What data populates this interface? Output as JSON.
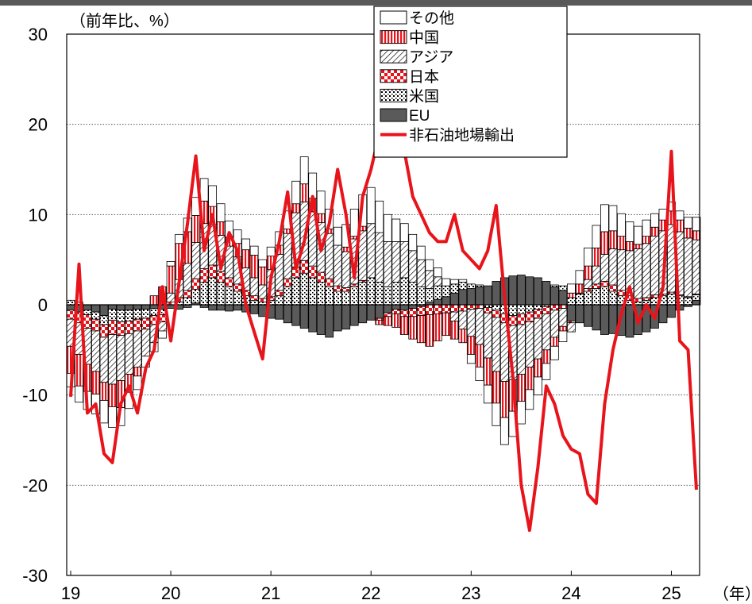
{
  "chart_data": {
    "type": "bar",
    "stacked": true,
    "unit_label": "（前年比、%）",
    "x_unit_label": "（年）",
    "ylim": [
      -30,
      30
    ],
    "yticks": [
      "30",
      "20",
      "10",
      "0",
      "-10",
      "-20",
      "-30"
    ],
    "xticks": [
      "19",
      "20",
      "21",
      "22",
      "23",
      "24",
      "25"
    ],
    "grid": true,
    "legend_position": "top-center",
    "months": [
      "2019-01",
      "2019-02",
      "2019-03",
      "2019-04",
      "2019-05",
      "2019-06",
      "2019-07",
      "2019-08",
      "2019-09",
      "2019-10",
      "2019-11",
      "2019-12",
      "2020-01",
      "2020-02",
      "2020-03",
      "2020-04",
      "2020-05",
      "2020-06",
      "2020-07",
      "2020-08",
      "2020-09",
      "2020-10",
      "2020-11",
      "2020-12",
      "2021-01",
      "2021-02",
      "2021-03",
      "2021-04",
      "2021-05",
      "2021-06",
      "2021-07",
      "2021-08",
      "2021-09",
      "2021-10",
      "2021-11",
      "2021-12",
      "2022-01",
      "2022-02",
      "2022-03",
      "2022-04",
      "2022-05",
      "2022-06",
      "2022-07",
      "2022-08",
      "2022-09",
      "2022-10",
      "2022-11",
      "2022-12",
      "2023-01",
      "2023-02",
      "2023-03",
      "2023-04",
      "2023-05",
      "2023-06",
      "2023-07",
      "2023-08",
      "2023-09",
      "2023-10",
      "2023-11",
      "2023-12",
      "2024-01",
      "2024-02",
      "2024-03",
      "2024-04",
      "2024-05",
      "2024-06",
      "2024-07",
      "2024-08",
      "2024-09",
      "2024-10",
      "2024-11",
      "2024-12",
      "2025-01",
      "2025-02",
      "2025-03",
      "2025-04"
    ],
    "series": [
      {
        "name": "EU",
        "kind": "bar",
        "pattern": "solid-gray",
        "values": [
          -0.6,
          -0.8,
          -0.6,
          -0.8,
          -1.2,
          -0.5,
          -0.6,
          -0.6,
          -0.5,
          -0.5,
          -0.4,
          -0.5,
          -0.4,
          -0.5,
          -0.3,
          0.2,
          -0.3,
          -0.6,
          -0.6,
          -0.7,
          -0.6,
          -0.8,
          -1.0,
          -1.3,
          -1.5,
          -1.6,
          -2.0,
          -2.3,
          -2.6,
          -3.0,
          -3.3,
          -3.6,
          -2.9,
          -2.7,
          -2.3,
          -2.0,
          -1.7,
          -1.5,
          -0.9,
          -0.5,
          -0.6,
          -0.4,
          -0.2,
          0.3,
          0.6,
          0.9,
          1.3,
          1.7,
          1.8,
          2.0,
          2.1,
          2.6,
          3.0,
          3.2,
          3.3,
          3.1,
          3.0,
          2.6,
          2.0,
          1.6,
          -1.8,
          -2.0,
          -2.4,
          -2.8,
          -3.3,
          -3.2,
          -3.4,
          -3.6,
          -3.3,
          -3.0,
          -2.6,
          -2.0,
          -1.4,
          -0.6,
          -0.2,
          0.5
        ]
      },
      {
        "name": "米国",
        "kind": "bar",
        "pattern": "speckled",
        "values": [
          0.5,
          0.3,
          -0.5,
          -0.8,
          -1.0,
          -1.2,
          -1.3,
          -1.2,
          -1.1,
          -1.0,
          -0.8,
          -0.6,
          0.0,
          0.3,
          0.8,
          1.5,
          2.5,
          3.0,
          2.5,
          2.0,
          1.5,
          1.0,
          0.5,
          0.3,
          0.5,
          1.0,
          2.0,
          3.0,
          3.5,
          3.0,
          2.5,
          2.0,
          1.5,
          1.5,
          2.0,
          2.5,
          3.0,
          2.5,
          2.0,
          2.5,
          3.0,
          2.5,
          2.0,
          1.5,
          1.5,
          1.2,
          1.0,
          0.8,
          0.5,
          0.2,
          -0.3,
          -0.6,
          -1.0,
          -1.2,
          -1.0,
          -0.8,
          -0.5,
          -0.2,
          0.2,
          0.5,
          0.8,
          1.2,
          1.5,
          1.8,
          2.0,
          1.5,
          1.0,
          0.5,
          0.3,
          0.5,
          0.8,
          1.0,
          1.2,
          1.0,
          0.8,
          0.6
        ]
      },
      {
        "name": "日本",
        "kind": "bar",
        "pattern": "checker-red",
        "values": [
          -1.0,
          -1.2,
          -1.5,
          -1.3,
          -1.4,
          -1.6,
          -1.5,
          -1.4,
          -1.3,
          -1.2,
          -1.0,
          -0.8,
          0.3,
          0.5,
          0.8,
          1.2,
          1.5,
          1.4,
          1.2,
          1.0,
          0.8,
          0.6,
          0.5,
          0.4,
          0.4,
          0.6,
          0.9,
          1.2,
          1.4,
          1.3,
          1.1,
          0.9,
          0.6,
          0.4,
          0.3,
          0.2,
          0.0,
          -0.2,
          -0.4,
          -0.5,
          -0.7,
          -0.9,
          -1.0,
          -1.1,
          -1.0,
          -0.9,
          -0.8,
          -0.7,
          -0.5,
          -0.4,
          -0.6,
          -0.8,
          -1.0,
          -1.1,
          -1.2,
          -1.1,
          -1.0,
          -0.8,
          -0.6,
          -0.4,
          -0.2,
          0.1,
          0.3,
          0.5,
          0.6,
          0.7,
          0.6,
          0.5,
          0.4,
          0.3,
          0.3,
          0.2,
          0.2,
          0.1,
          0.1,
          0.1
        ]
      },
      {
        "name": "アジア",
        "kind": "bar",
        "pattern": "diagonal",
        "values": [
          -3.0,
          -3.5,
          -4.0,
          -4.5,
          -5.0,
          -5.5,
          -5.0,
          -4.5,
          -4.0,
          -3.0,
          -2.0,
          -1.0,
          1.0,
          2.0,
          3.0,
          4.0,
          5.0,
          4.5,
          4.0,
          3.5,
          3.0,
          2.5,
          2.0,
          1.5,
          3.0,
          4.0,
          5.0,
          6.0,
          6.5,
          6.0,
          5.5,
          5.0,
          4.5,
          4.0,
          5.0,
          5.5,
          6.0,
          5.5,
          5.0,
          4.5,
          4.0,
          3.5,
          3.0,
          2.0,
          1.0,
          0.0,
          -1.0,
          -2.0,
          -3.0,
          -4.0,
          -5.0,
          -6.0,
          -6.5,
          -6.0,
          -5.5,
          -5.0,
          -4.5,
          -4.0,
          -3.0,
          -2.0,
          -1.0,
          0.0,
          1.0,
          2.0,
          3.0,
          4.0,
          4.5,
          5.0,
          5.5,
          6.0,
          6.5,
          7.0,
          7.5,
          7.0,
          6.5,
          6.0
        ]
      },
      {
        "name": "中国",
        "kind": "bar",
        "pattern": "vertical-red",
        "values": [
          -3.0,
          -3.5,
          -3.0,
          -2.5,
          -2.0,
          -2.5,
          -3.0,
          -2.0,
          -1.0,
          0.0,
          1.0,
          2.0,
          3.0,
          4.0,
          3.5,
          3.0,
          2.5,
          2.0,
          1.5,
          1.0,
          1.5,
          2.0,
          2.5,
          2.0,
          1.5,
          1.0,
          0.5,
          1.0,
          2.0,
          1.5,
          1.0,
          0.5,
          0.0,
          0.5,
          0.3,
          0.5,
          0.0,
          -0.5,
          -1.0,
          -1.5,
          -2.0,
          -2.5,
          -3.0,
          -3.5,
          -3.0,
          -2.5,
          -2.0,
          -1.5,
          -2.0,
          -2.5,
          -3.0,
          -3.5,
          -4.0,
          -3.5,
          -3.0,
          -2.5,
          -2.0,
          -1.5,
          -1.0,
          -0.5,
          0.5,
          1.0,
          1.5,
          2.0,
          2.5,
          2.0,
          1.5,
          1.0,
          0.5,
          0.8,
          1.0,
          1.2,
          1.5,
          1.3,
          1.1,
          1.0
        ]
      },
      {
        "name": "その他",
        "kind": "bar",
        "pattern": "white",
        "values": [
          -1.5,
          -1.8,
          -2.0,
          -2.2,
          -2.5,
          -2.3,
          -2.0,
          -1.8,
          -1.5,
          -1.2,
          -1.0,
          -0.8,
          0.5,
          1.0,
          1.5,
          2.0,
          2.5,
          2.3,
          2.0,
          1.8,
          1.5,
          1.2,
          1.0,
          0.8,
          1.0,
          1.5,
          2.0,
          2.5,
          3.0,
          2.8,
          2.5,
          2.2,
          2.0,
          2.5,
          3.0,
          3.5,
          4.0,
          3.5,
          3.0,
          2.5,
          2.0,
          1.8,
          1.5,
          1.2,
          1.0,
          0.8,
          0.5,
          0.3,
          -1.0,
          -1.5,
          -2.0,
          -2.5,
          -3.0,
          -2.8,
          -2.5,
          -2.2,
          -2.0,
          -1.8,
          -1.5,
          -1.2,
          1.0,
          1.5,
          2.0,
          2.5,
          3.0,
          2.8,
          2.5,
          2.2,
          2.0,
          1.8,
          1.5,
          1.2,
          1.0,
          1.0,
          1.2,
          1.5
        ]
      },
      {
        "name": "非石油地場輸出",
        "kind": "line",
        "color": "#e8141b",
        "values": [
          -10.2,
          4.5,
          -12.0,
          -11.0,
          -16.5,
          -17.5,
          -11.0,
          -9.0,
          -12.0,
          -7.0,
          -5.0,
          2.0,
          -4.0,
          2.5,
          9.0,
          16.5,
          6.0,
          10.0,
          4.0,
          8.0,
          6.0,
          0.0,
          -3.0,
          -6.0,
          3.0,
          7.0,
          12.5,
          4.0,
          7.0,
          12.0,
          6.0,
          9.0,
          15.0,
          10.0,
          3.0,
          12.0,
          15.0,
          19.0,
          24.0,
          18.5,
          17.0,
          12.0,
          10.0,
          8.0,
          7.0,
          7.0,
          10.0,
          6.0,
          5.0,
          4.0,
          6.0,
          11.0,
          1.0,
          -8.0,
          -20.0,
          -25.0,
          -18.0,
          -9.0,
          -11.0,
          -14.5,
          -16.0,
          -16.5,
          -21.0,
          -22.0,
          -11.0,
          -5.0,
          -1.0,
          2.0,
          -2.0,
          0.0,
          -1.5,
          2.0,
          17.0,
          -4.0,
          -5.0,
          -20.5
        ]
      }
    ]
  }
}
